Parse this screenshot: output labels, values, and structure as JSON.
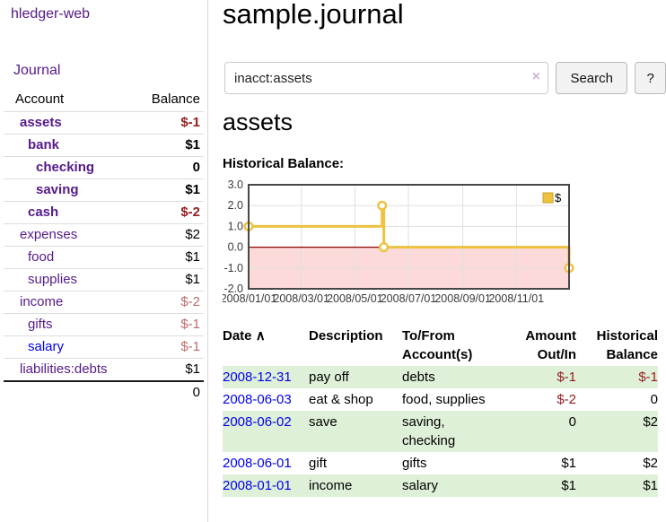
{
  "colors": {
    "accent_purple": "#551a8b",
    "link_blue": "#0000ee",
    "negative_strong": "#961c1c",
    "negative_soft": "#bf6a6e",
    "stripe_green": "#dff0d8",
    "chart_line_gold": "#edc240",
    "chart_negative_fill": "#fcdada",
    "chart_zero_line": "#8b0000",
    "chart_grid": "#e0e0e0",
    "chart_border": "#474747"
  },
  "sidebar": {
    "brand": "hledger-web",
    "journal_label": "Journal",
    "accounts_table": {
      "headers": {
        "account": "Account",
        "balance": "Balance"
      },
      "rows": [
        {
          "name": "assets",
          "balance": "$-1"
        },
        {
          "name": "bank",
          "balance": "$1"
        },
        {
          "name": "checking",
          "balance": "0"
        },
        {
          "name": "saving",
          "balance": "$1"
        },
        {
          "name": "cash",
          "balance": "$-2"
        },
        {
          "name": "expenses",
          "balance": "$2"
        },
        {
          "name": "food",
          "balance": "$1"
        },
        {
          "name": "supplies",
          "balance": "$1"
        },
        {
          "name": "income",
          "balance": "$-2"
        },
        {
          "name": "gifts",
          "balance": "$-1"
        },
        {
          "name": "salary",
          "balance": "$-1"
        },
        {
          "name": "liabilities:debts",
          "balance": "$1"
        }
      ],
      "total": "0"
    }
  },
  "main": {
    "title": "sample.journal",
    "search": {
      "value": "inacct:assets",
      "clear_icon": "×",
      "button_label": "Search",
      "help_label": "?"
    },
    "account_heading": "assets",
    "chart_label": "Historical Balance:"
  },
  "chart_data": {
    "type": "line",
    "step": true,
    "title": "Historical Balance",
    "series": [
      {
        "name": "$",
        "color": "#edc240",
        "points": [
          [
            "2008-01-01",
            1
          ],
          [
            "2008-06-01",
            2
          ],
          [
            "2008-06-03",
            0
          ],
          [
            "2008-12-31",
            -1
          ]
        ]
      }
    ],
    "x_range": [
      "2008-01-01",
      "2008-12-31"
    ],
    "ylim": [
      -2,
      3
    ],
    "y_ticks": [
      3,
      2,
      1,
      0,
      -1,
      -2
    ],
    "y_tick_labels": [
      "3.0",
      "2.0",
      "1.0",
      "0.0",
      "-1.0",
      "-2.0"
    ],
    "x_tick_dates": [
      "2008-01-01",
      "2008-03-01",
      "2008-05-01",
      "2008-07-01",
      "2008-09-01",
      "2008-11-01"
    ],
    "x_tick_labels": [
      "2008/01/01",
      "2008/03/01",
      "2008/05/01",
      "2008/07/01",
      "2008/09/01",
      "2008/11/01"
    ],
    "legend": {
      "label": "$",
      "position": "top-right"
    },
    "grid": true
  },
  "register": {
    "headers": {
      "date": "Date",
      "sort_caret": "∧",
      "description": "Description",
      "account": "To/From Account(s)",
      "amount": "Amount Out/In",
      "balance": "Historical Balance"
    },
    "rows": [
      {
        "date": "2008-12-31",
        "description": "pay off",
        "account": "debts",
        "amount": "$-1",
        "balance": "$-1"
      },
      {
        "date": "2008-06-03",
        "description": "eat & shop",
        "account": "food, supplies",
        "amount": "$-2",
        "balance": "0"
      },
      {
        "date": "2008-06-02",
        "description": "save",
        "account": "saving,\nchecking",
        "amount": "0",
        "balance": "$2"
      },
      {
        "date": "2008-06-01",
        "description": "gift",
        "account": "gifts",
        "amount": "$1",
        "balance": "$2"
      },
      {
        "date": "2008-01-01",
        "description": "income",
        "account": "salary",
        "amount": "$1",
        "balance": "$1"
      }
    ]
  }
}
